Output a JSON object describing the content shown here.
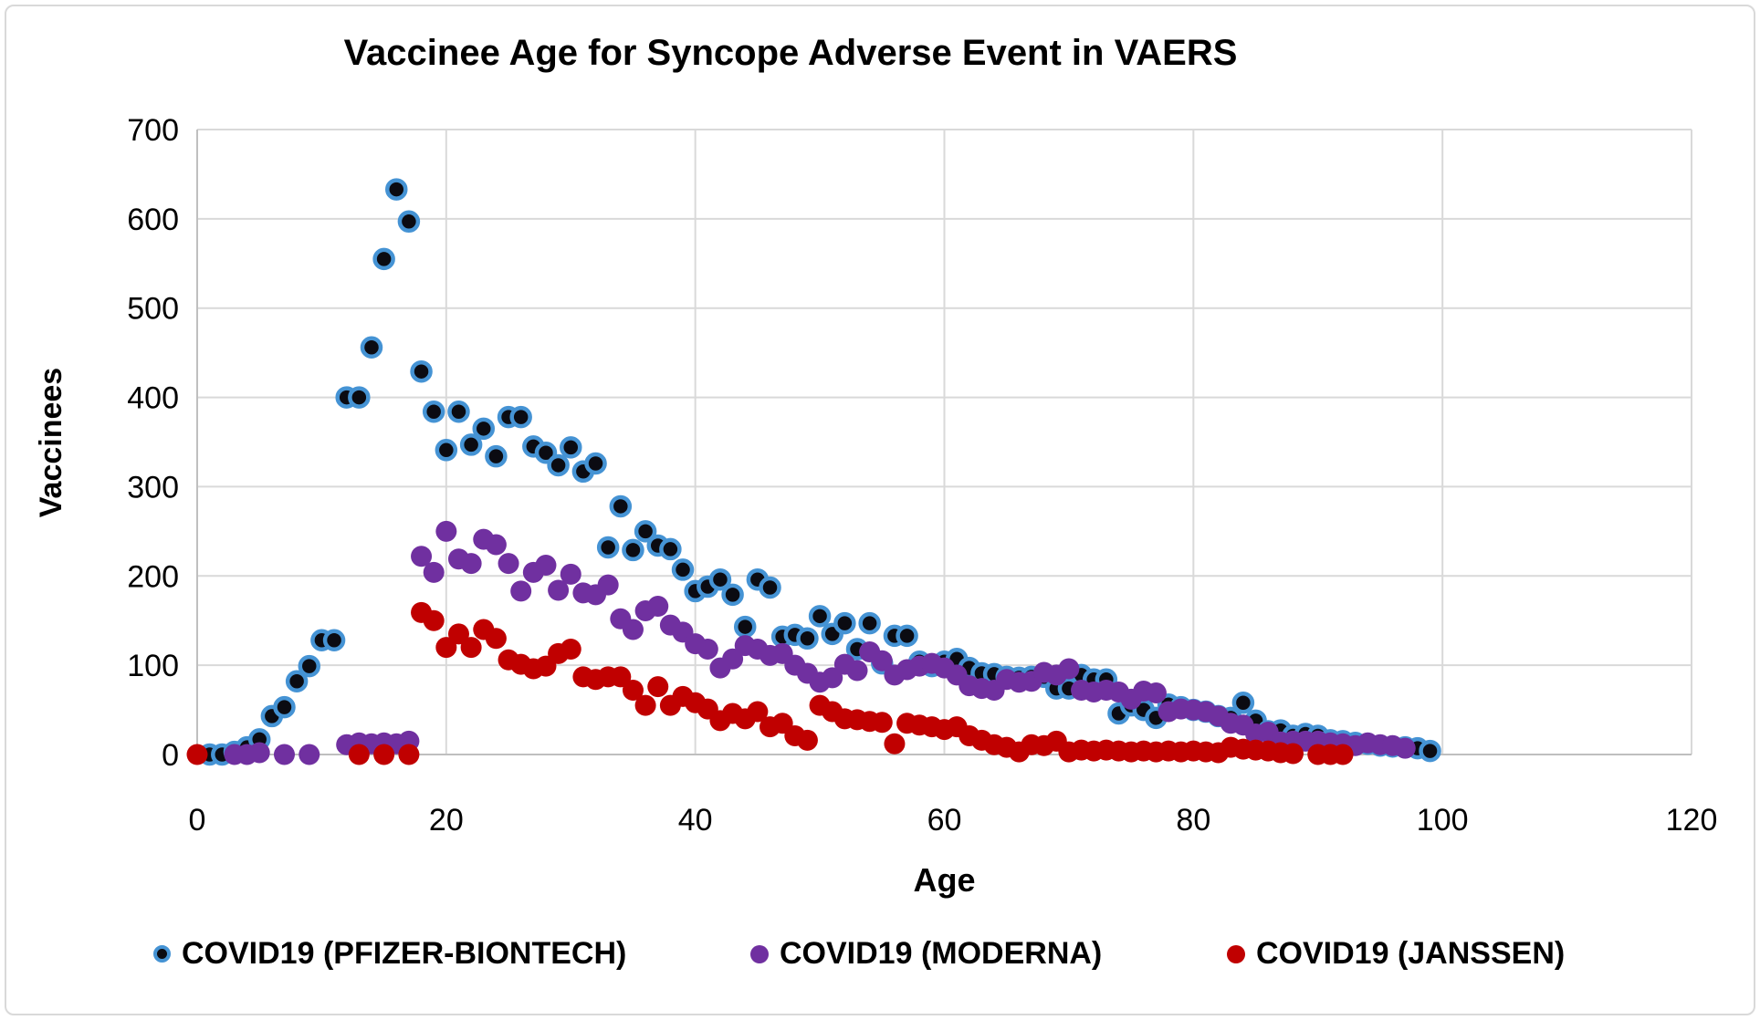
{
  "colors": {
    "background": "#FFFFFF",
    "border": "#D9D9D9",
    "gridline": "#D9D9D9",
    "axis": "#BFBFBF",
    "text": "#000000",
    "pfizer_fill": "#0B0B12",
    "pfizer_ring": "#4593D4",
    "moderna_fill": "#7030A0",
    "janssen_fill": "#C00000"
  },
  "chart_data": {
    "type": "scatter",
    "title": "Vaccinee Age for Syncope Adverse Event in VAERS",
    "xlabel": "Age",
    "ylabel": "Vaccinees",
    "xlim": [
      0,
      120
    ],
    "ylim": [
      0,
      700
    ],
    "x_ticks": [
      0,
      20,
      40,
      60,
      80,
      100,
      120
    ],
    "y_ticks": [
      0,
      100,
      200,
      300,
      400,
      500,
      600,
      700
    ],
    "grid": true,
    "legend_position": "bottom",
    "series": [
      {
        "name": "COVID19 (PFIZER-BIONTECH)",
        "marker": "black circle with light-blue ring",
        "color": "#0B0B12",
        "ring_color": "#4593D4",
        "points": [
          [
            1,
            0
          ],
          [
            2,
            0
          ],
          [
            3,
            3
          ],
          [
            4,
            8
          ],
          [
            5,
            17
          ],
          [
            6,
            43
          ],
          [
            7,
            53
          ],
          [
            8,
            82
          ],
          [
            9,
            99
          ],
          [
            10,
            128
          ],
          [
            11,
            128
          ],
          [
            12,
            400
          ],
          [
            13,
            400
          ],
          [
            14,
            456
          ],
          [
            15,
            555
          ],
          [
            16,
            633
          ],
          [
            17,
            597
          ],
          [
            18,
            429
          ],
          [
            19,
            384
          ],
          [
            20,
            341
          ],
          [
            21,
            384
          ],
          [
            22,
            347
          ],
          [
            23,
            365
          ],
          [
            24,
            334
          ],
          [
            25,
            378
          ],
          [
            26,
            378
          ],
          [
            27,
            345
          ],
          [
            28,
            338
          ],
          [
            29,
            324
          ],
          [
            30,
            344
          ],
          [
            31,
            317
          ],
          [
            32,
            326
          ],
          [
            33,
            232
          ],
          [
            34,
            278
          ],
          [
            35,
            229
          ],
          [
            36,
            250
          ],
          [
            37,
            234
          ],
          [
            38,
            230
          ],
          [
            39,
            207
          ],
          [
            40,
            183
          ],
          [
            41,
            188
          ],
          [
            42,
            196
          ],
          [
            43,
            179
          ],
          [
            44,
            143
          ],
          [
            45,
            196
          ],
          [
            46,
            187
          ],
          [
            47,
            132
          ],
          [
            48,
            134
          ],
          [
            49,
            130
          ],
          [
            50,
            155
          ],
          [
            51,
            135
          ],
          [
            52,
            147
          ],
          [
            53,
            118
          ],
          [
            54,
            147
          ],
          [
            55,
            102
          ],
          [
            56,
            133
          ],
          [
            57,
            133
          ],
          [
            58,
            104
          ],
          [
            59,
            99
          ],
          [
            60,
            104
          ],
          [
            61,
            107
          ],
          [
            62,
            97
          ],
          [
            63,
            91
          ],
          [
            64,
            90
          ],
          [
            65,
            87
          ],
          [
            66,
            86
          ],
          [
            67,
            87
          ],
          [
            68,
            87
          ],
          [
            69,
            74
          ],
          [
            70,
            74
          ],
          [
            71,
            89
          ],
          [
            72,
            84
          ],
          [
            73,
            84
          ],
          [
            74,
            46
          ],
          [
            75,
            55
          ],
          [
            76,
            50
          ],
          [
            77,
            41
          ],
          [
            78,
            56
          ],
          [
            79,
            53
          ],
          [
            80,
            50
          ],
          [
            81,
            48
          ],
          [
            82,
            43
          ],
          [
            83,
            41
          ],
          [
            84,
            58
          ],
          [
            85,
            38
          ],
          [
            86,
            26
          ],
          [
            87,
            27
          ],
          [
            88,
            21
          ],
          [
            89,
            23
          ],
          [
            90,
            21
          ],
          [
            91,
            16
          ],
          [
            92,
            15
          ],
          [
            93,
            13
          ],
          [
            94,
            12
          ],
          [
            95,
            10
          ],
          [
            96,
            9
          ],
          [
            97,
            8
          ],
          [
            98,
            7
          ],
          [
            99,
            4
          ]
        ]
      },
      {
        "name": "COVID19 (MODERNA)",
        "marker": "purple circle",
        "color": "#7030A0",
        "points": [
          [
            3,
            0
          ],
          [
            4,
            0
          ],
          [
            5,
            2
          ],
          [
            7,
            0
          ],
          [
            9,
            0
          ],
          [
            12,
            11
          ],
          [
            13,
            13
          ],
          [
            14,
            12
          ],
          [
            15,
            13
          ],
          [
            16,
            12
          ],
          [
            17,
            15
          ],
          [
            18,
            222
          ],
          [
            19,
            204
          ],
          [
            20,
            250
          ],
          [
            21,
            219
          ],
          [
            22,
            214
          ],
          [
            23,
            241
          ],
          [
            24,
            235
          ],
          [
            25,
            214
          ],
          [
            26,
            183
          ],
          [
            27,
            204
          ],
          [
            28,
            212
          ],
          [
            29,
            184
          ],
          [
            30,
            202
          ],
          [
            31,
            181
          ],
          [
            32,
            179
          ],
          [
            33,
            190
          ],
          [
            34,
            152
          ],
          [
            35,
            140
          ],
          [
            36,
            161
          ],
          [
            37,
            166
          ],
          [
            38,
            145
          ],
          [
            39,
            137
          ],
          [
            40,
            124
          ],
          [
            41,
            118
          ],
          [
            42,
            97
          ],
          [
            43,
            107
          ],
          [
            44,
            122
          ],
          [
            45,
            118
          ],
          [
            46,
            111
          ],
          [
            47,
            113
          ],
          [
            48,
            100
          ],
          [
            49,
            91
          ],
          [
            50,
            81
          ],
          [
            51,
            86
          ],
          [
            52,
            101
          ],
          [
            53,
            94
          ],
          [
            54,
            115
          ],
          [
            55,
            105
          ],
          [
            56,
            89
          ],
          [
            57,
            95
          ],
          [
            58,
            99
          ],
          [
            59,
            102
          ],
          [
            60,
            97
          ],
          [
            61,
            89
          ],
          [
            62,
            77
          ],
          [
            63,
            74
          ],
          [
            64,
            72
          ],
          [
            65,
            84
          ],
          [
            66,
            81
          ],
          [
            67,
            82
          ],
          [
            68,
            92
          ],
          [
            69,
            89
          ],
          [
            70,
            96
          ],
          [
            71,
            72
          ],
          [
            72,
            70
          ],
          [
            73,
            72
          ],
          [
            74,
            70
          ],
          [
            75,
            62
          ],
          [
            76,
            71
          ],
          [
            77,
            69
          ],
          [
            78,
            48
          ],
          [
            79,
            51
          ],
          [
            80,
            50
          ],
          [
            81,
            48
          ],
          [
            82,
            43
          ],
          [
            83,
            35
          ],
          [
            84,
            33
          ],
          [
            85,
            23
          ],
          [
            86,
            25
          ],
          [
            87,
            14
          ],
          [
            88,
            15
          ],
          [
            89,
            15
          ],
          [
            90,
            15
          ],
          [
            91,
            13
          ],
          [
            92,
            12
          ],
          [
            93,
            10
          ],
          [
            94,
            13
          ],
          [
            95,
            11
          ],
          [
            96,
            10
          ],
          [
            97,
            7
          ]
        ]
      },
      {
        "name": "COVID19 (JANSSEN)",
        "marker": "red circle",
        "color": "#C00000",
        "points": [
          [
            0,
            0
          ],
          [
            13,
            0
          ],
          [
            15,
            0
          ],
          [
            17,
            0
          ],
          [
            18,
            159
          ],
          [
            19,
            150
          ],
          [
            20,
            120
          ],
          [
            21,
            135
          ],
          [
            22,
            120
          ],
          [
            23,
            140
          ],
          [
            24,
            130
          ],
          [
            25,
            106
          ],
          [
            26,
            101
          ],
          [
            27,
            96
          ],
          [
            28,
            99
          ],
          [
            29,
            113
          ],
          [
            30,
            118
          ],
          [
            31,
            87
          ],
          [
            32,
            84
          ],
          [
            33,
            87
          ],
          [
            34,
            87
          ],
          [
            35,
            72
          ],
          [
            36,
            55
          ],
          [
            37,
            76
          ],
          [
            38,
            55
          ],
          [
            39,
            65
          ],
          [
            40,
            58
          ],
          [
            41,
            51
          ],
          [
            42,
            38
          ],
          [
            43,
            46
          ],
          [
            44,
            40
          ],
          [
            45,
            48
          ],
          [
            46,
            31
          ],
          [
            47,
            35
          ],
          [
            48,
            21
          ],
          [
            49,
            16
          ],
          [
            50,
            55
          ],
          [
            51,
            48
          ],
          [
            52,
            40
          ],
          [
            53,
            39
          ],
          [
            54,
            37
          ],
          [
            55,
            36
          ],
          [
            56,
            12
          ],
          [
            57,
            35
          ],
          [
            58,
            33
          ],
          [
            59,
            31
          ],
          [
            60,
            28
          ],
          [
            61,
            31
          ],
          [
            62,
            21
          ],
          [
            63,
            16
          ],
          [
            64,
            11
          ],
          [
            65,
            8
          ],
          [
            66,
            3
          ],
          [
            67,
            11
          ],
          [
            68,
            10
          ],
          [
            69,
            15
          ],
          [
            70,
            3
          ],
          [
            71,
            5
          ],
          [
            72,
            4
          ],
          [
            73,
            5
          ],
          [
            74,
            4
          ],
          [
            75,
            3
          ],
          [
            76,
            4
          ],
          [
            77,
            3
          ],
          [
            78,
            4
          ],
          [
            79,
            3
          ],
          [
            80,
            4
          ],
          [
            81,
            3
          ],
          [
            82,
            2
          ],
          [
            83,
            8
          ],
          [
            84,
            6
          ],
          [
            85,
            5
          ],
          [
            86,
            4
          ],
          [
            87,
            2
          ],
          [
            88,
            1
          ],
          [
            90,
            0
          ],
          [
            91,
            0
          ],
          [
            92,
            0
          ]
        ]
      }
    ]
  }
}
